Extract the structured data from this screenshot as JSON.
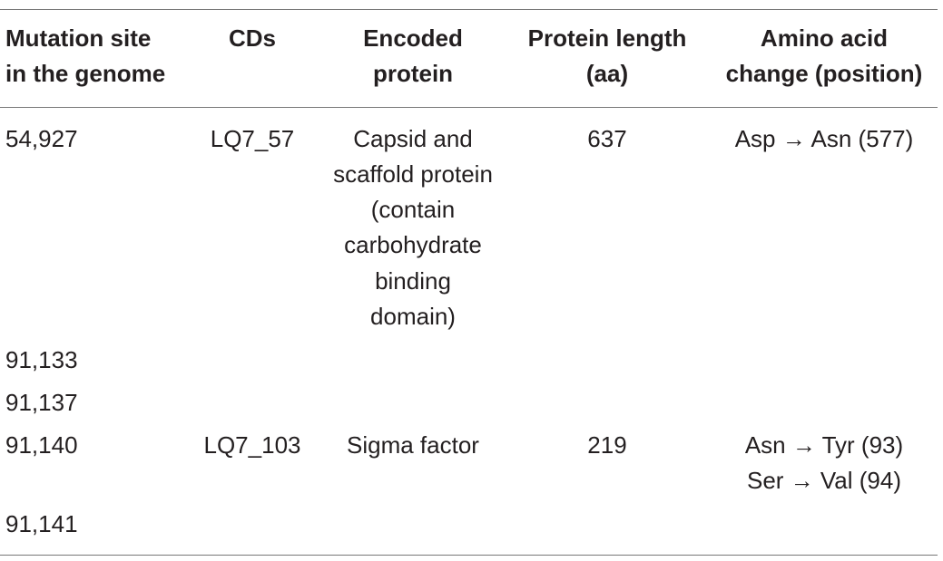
{
  "table": {
    "header": [
      [
        "Mutation site",
        "in the genome"
      ],
      [
        "CDs"
      ],
      [
        "Encoded",
        "protein"
      ],
      [
        "Protein length",
        "(aa)"
      ],
      [
        "Amino acid",
        "change (position)"
      ]
    ],
    "rows": [
      [
        "54,927",
        "LQ7_57",
        [
          "Capsid and",
          "scaffold protein",
          "(contain",
          "carbohydrate",
          "binding",
          "domain)"
        ],
        "637",
        "Asp → Asn (577)"
      ],
      [
        "91,133",
        null,
        null,
        null,
        null
      ],
      [
        "91,137",
        null,
        null,
        null,
        null
      ],
      [
        "91,140",
        "LQ7_103",
        "Sigma factor",
        "219",
        [
          "Asn → Tyr (93)",
          "Ser → Val (94)"
        ]
      ],
      [
        "91,141",
        null,
        null,
        null,
        null
      ]
    ]
  }
}
